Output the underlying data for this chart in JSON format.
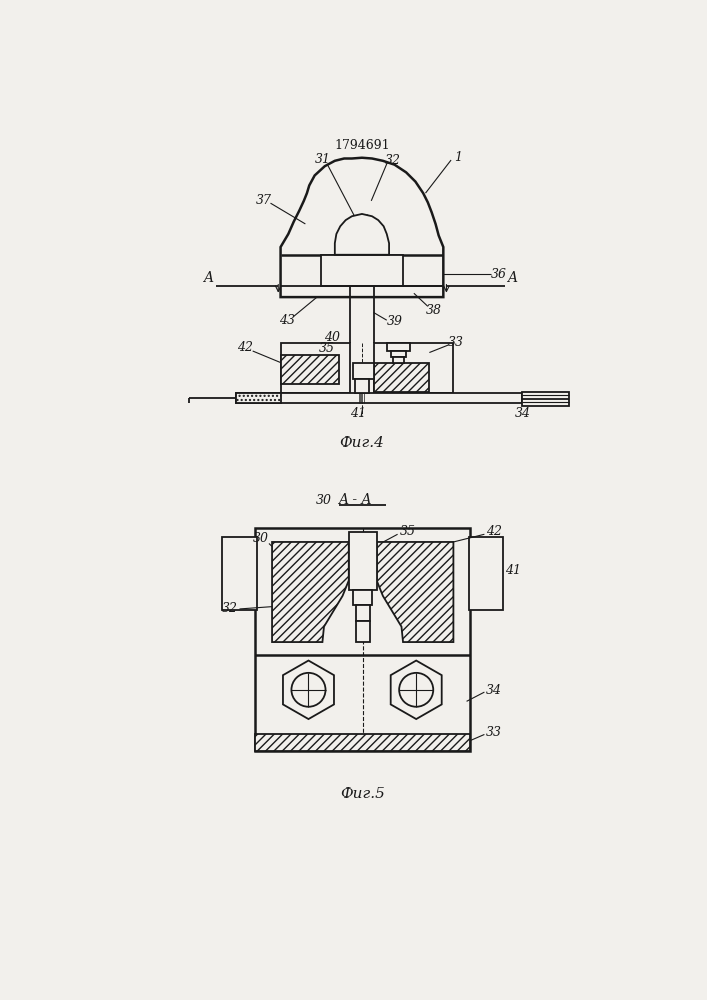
{
  "bg_color": "#f2f0ec",
  "line_color": "#1a1a1a",
  "fig4_caption": "Фиг.4",
  "fig5_caption": "Фиг.5",
  "patent_number": "1794691",
  "label_fontsize": 9,
  "caption_fontsize": 11
}
